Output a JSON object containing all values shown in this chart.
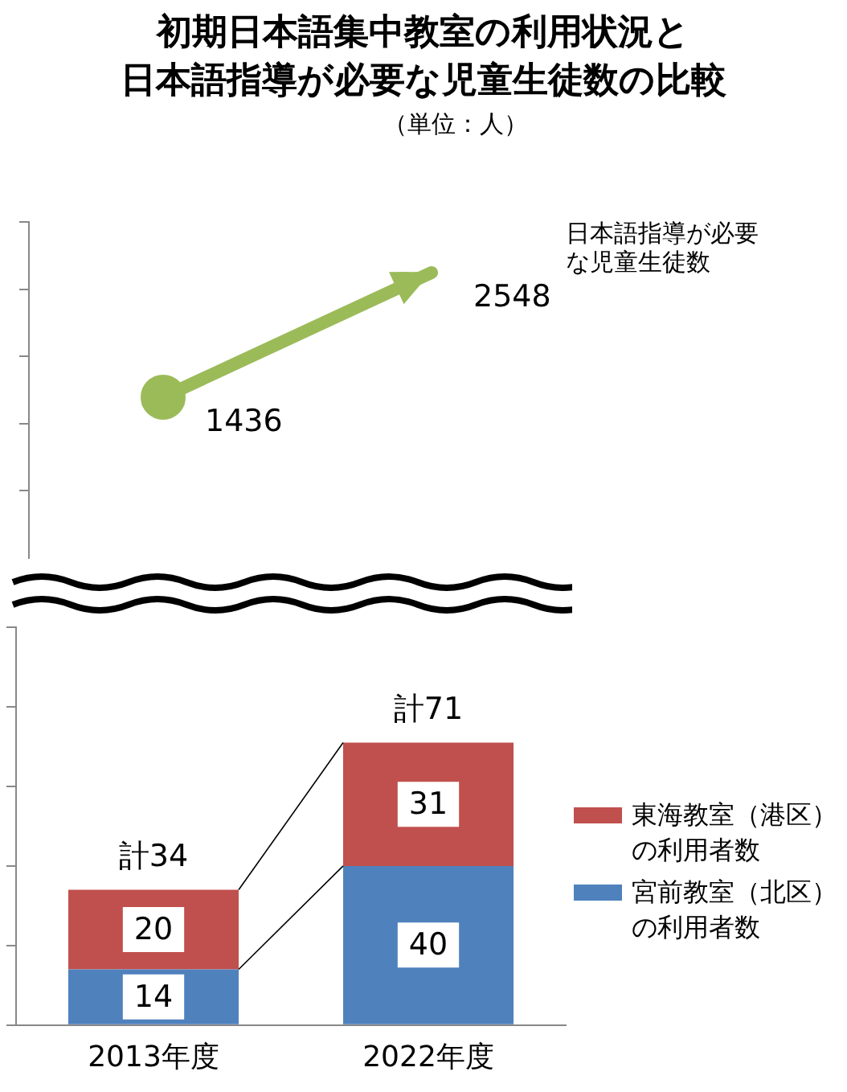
{
  "chart_data": [
    {
      "type": "line",
      "title": "初期日本語集中教室の利用状況と",
      "subtitle": "日本語指導が必要な児童生徒数の比較",
      "annotations": [
        "（単位：人）"
      ],
      "categories": [
        null,
        null
      ],
      "series": [
        {
          "name": "日本語指導が必要な児童生徒数",
          "color": "#9bbb59",
          "values": [
            1436,
            2548
          ]
        }
      ],
      "ylim": [
        0,
        3000
      ],
      "yticks": [
        {
          "value": 600,
          "label": null
        },
        {
          "value": 1200,
          "label": null
        },
        {
          "value": 1800,
          "label": null
        },
        {
          "value": 2400,
          "label": null
        },
        {
          "value": 3000,
          "label": null
        }
      ],
      "marker": "circle",
      "data_labels": true,
      "tick_labels": false
    },
    {
      "type": "bar",
      "stacked": true,
      "categories": [
        "2013年度",
        "2022年度"
      ],
      "series": [
        {
          "name": "宮前教室（北区）の利用者数",
          "color": "#4f81bd",
          "values": [
            14,
            40
          ]
        },
        {
          "name": "東海教室（港区）の利用者数",
          "color": "#c0504d",
          "values": [
            20,
            31
          ]
        }
      ],
      "ylim": [
        0,
        100
      ],
      "yticks": [
        {
          "value": 0,
          "label": null
        },
        {
          "value": 20,
          "label": null
        },
        {
          "value": 40,
          "label": null
        },
        {
          "value": 60,
          "label": null
        },
        {
          "value": 80,
          "label": null
        },
        {
          "value": 100,
          "label": null
        }
      ],
      "data_labels": true,
      "totals": [
        "計34",
        "計71"
      ],
      "legend": "right",
      "tick_labels": "x"
    }
  ]
}
